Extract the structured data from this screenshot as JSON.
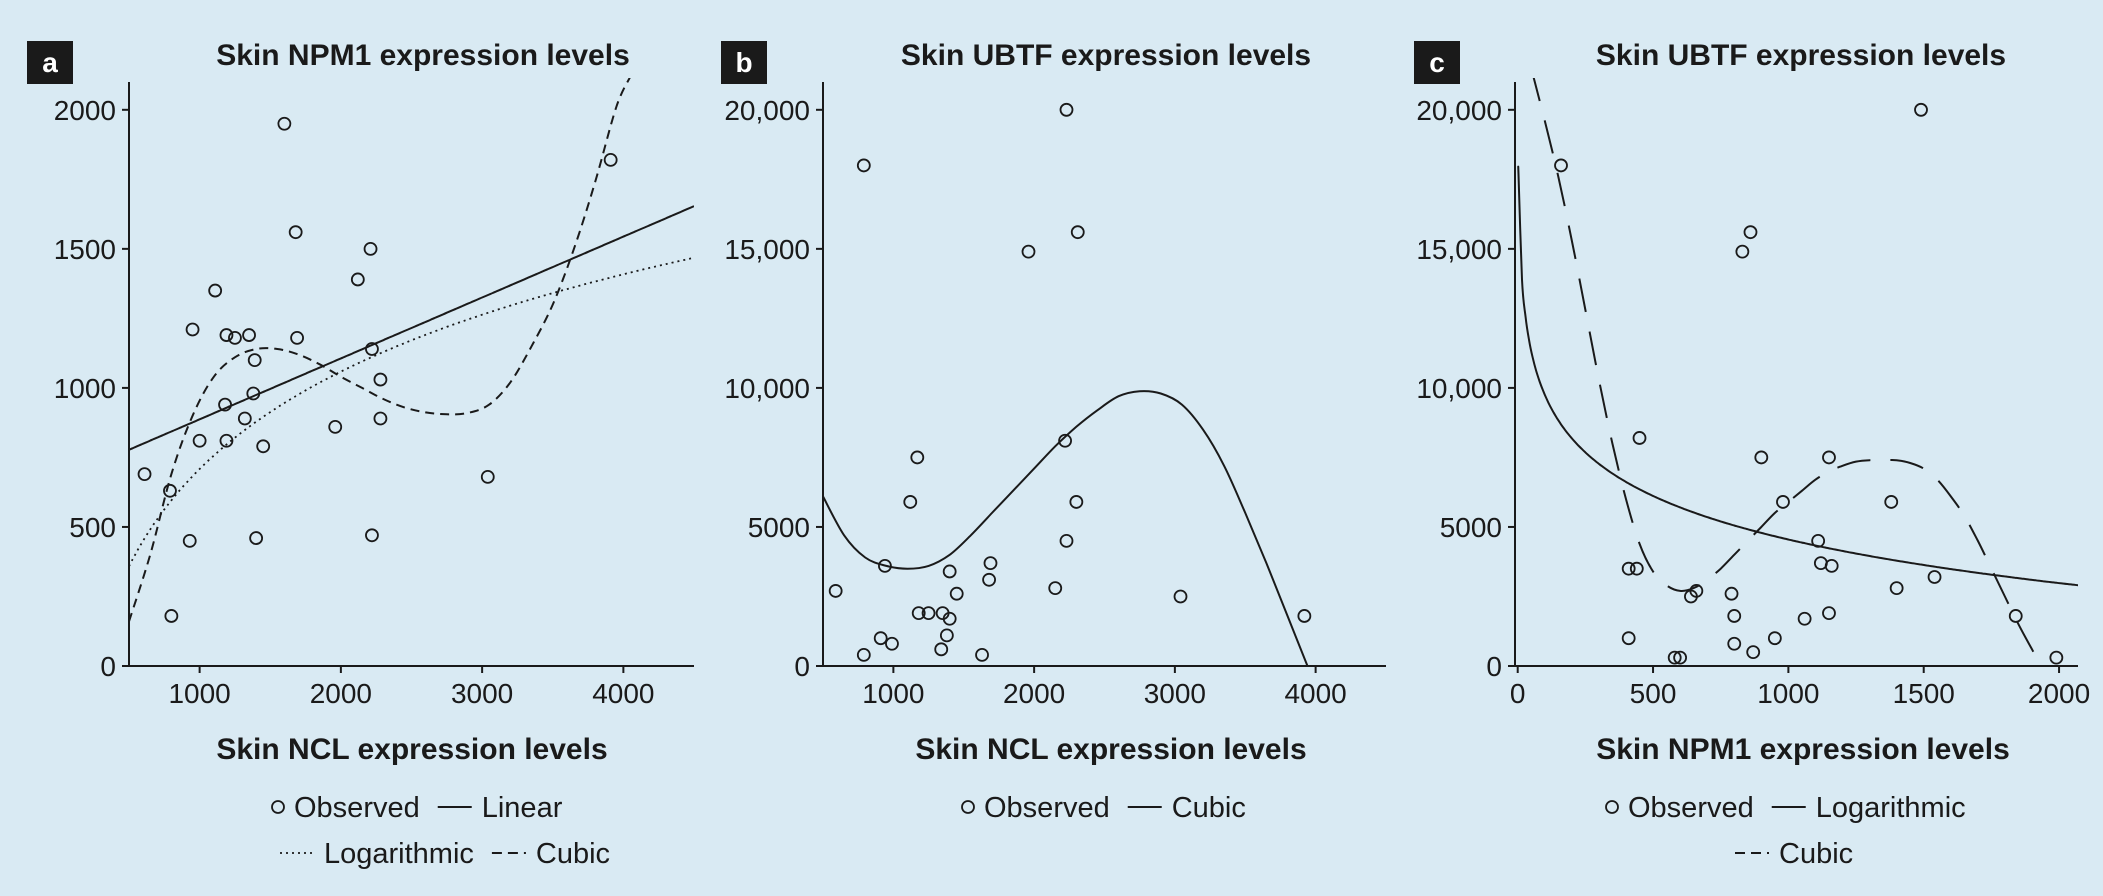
{
  "colors": {
    "background": "#d9eaf3",
    "ink": "#1a1a1a",
    "label_box": "#1a1a1a",
    "label_text": "#ffffff"
  },
  "chart_data": [
    {
      "panel": "a",
      "type": "scatter",
      "title": "Skin NPM1 expression levels",
      "xlabel": "Skin NCL expression levels",
      "ylabel": "",
      "xlim": [
        500,
        4500
      ],
      "ylim": [
        0,
        2100
      ],
      "xticks": [
        1000,
        2000,
        3000,
        4000
      ],
      "xtick_labels": [
        "1000",
        "2000",
        "3000",
        "4000"
      ],
      "yticks": [
        0,
        500,
        1000,
        1500,
        2000
      ],
      "ytick_labels": [
        "0",
        "500",
        "1000",
        "1500",
        "2000"
      ],
      "grid": false,
      "legend_placement": "bottom",
      "legend_rows": [
        [
          {
            "symbol": "circle",
            "label": "Observed"
          },
          {
            "symbol": "solid",
            "label": "Linear"
          }
        ],
        [
          {
            "symbol": "dotted",
            "label": "Logarithmic"
          },
          {
            "symbol": "dashed",
            "label": "Cubic"
          }
        ]
      ],
      "points": [
        {
          "x": 610,
          "y": 690
        },
        {
          "x": 790,
          "y": 630
        },
        {
          "x": 800,
          "y": 180
        },
        {
          "x": 930,
          "y": 450
        },
        {
          "x": 950,
          "y": 1210
        },
        {
          "x": 1000,
          "y": 810
        },
        {
          "x": 1110,
          "y": 1350
        },
        {
          "x": 1180,
          "y": 940
        },
        {
          "x": 1190,
          "y": 1190
        },
        {
          "x": 1190,
          "y": 810
        },
        {
          "x": 1250,
          "y": 1180
        },
        {
          "x": 1320,
          "y": 890
        },
        {
          "x": 1350,
          "y": 1190
        },
        {
          "x": 1380,
          "y": 980
        },
        {
          "x": 1390,
          "y": 1100
        },
        {
          "x": 1400,
          "y": 460
        },
        {
          "x": 1450,
          "y": 790
        },
        {
          "x": 1600,
          "y": 1950
        },
        {
          "x": 1680,
          "y": 1560
        },
        {
          "x": 1690,
          "y": 1180
        },
        {
          "x": 1960,
          "y": 860
        },
        {
          "x": 2120,
          "y": 1390
        },
        {
          "x": 2210,
          "y": 1500
        },
        {
          "x": 2220,
          "y": 470
        },
        {
          "x": 2220,
          "y": 1140
        },
        {
          "x": 2280,
          "y": 1030
        },
        {
          "x": 2280,
          "y": 890
        },
        {
          "x": 3040,
          "y": 680
        },
        {
          "x": 3910,
          "y": 1820
        }
      ],
      "fits": [
        {
          "name": "Linear",
          "style": "solid",
          "model": "linear",
          "coef": [
            668,
            0.219
          ]
        },
        {
          "name": "Logarithmic",
          "style": "dotted",
          "model": "log",
          "coef": [
            -2780,
            505
          ]
        },
        {
          "name": "Cubic",
          "style": "dashed",
          "model": "spline",
          "points": [
            [
              500,
              160
            ],
            [
              650,
              400
            ],
            [
              800,
              690
            ],
            [
              950,
              900
            ],
            [
              1100,
              1040
            ],
            [
              1250,
              1110
            ],
            [
              1400,
              1140
            ],
            [
              1550,
              1140
            ],
            [
              1700,
              1120
            ],
            [
              1850,
              1085
            ],
            [
              2000,
              1040
            ],
            [
              2150,
              1000
            ],
            [
              2300,
              960
            ],
            [
              2450,
              930
            ],
            [
              2600,
              912
            ],
            [
              2750,
              905
            ],
            [
              2900,
              910
            ],
            [
              3050,
              940
            ],
            [
              3200,
              1020
            ],
            [
              3350,
              1150
            ],
            [
              3500,
              1300
            ],
            [
              3650,
              1500
            ],
            [
              3800,
              1740
            ],
            [
              3950,
              2010
            ],
            [
              4050,
              2120
            ]
          ]
        }
      ]
    },
    {
      "panel": "b",
      "type": "scatter",
      "title": "Skin UBTF expression levels",
      "xlabel": "Skin NCL expression levels",
      "ylabel": "",
      "xlim": [
        500,
        4500
      ],
      "ylim": [
        0,
        21000
      ],
      "xticks": [
        1000,
        2000,
        3000,
        4000
      ],
      "xtick_labels": [
        "1000",
        "2000",
        "3000",
        "4000"
      ],
      "yticks": [
        0,
        5000,
        10000,
        15000,
        20000
      ],
      "ytick_labels": [
        "0",
        "5000",
        "10,000",
        "15,000",
        "20,000"
      ],
      "grid": false,
      "legend_placement": "bottom",
      "legend_rows": [
        [
          {
            "symbol": "circle",
            "label": "Observed"
          },
          {
            "symbol": "solid",
            "label": "Cubic"
          }
        ]
      ],
      "points": [
        {
          "x": 590,
          "y": 2700
        },
        {
          "x": 790,
          "y": 18000
        },
        {
          "x": 790,
          "y": 400
        },
        {
          "x": 910,
          "y": 1000
        },
        {
          "x": 940,
          "y": 3600
        },
        {
          "x": 990,
          "y": 800
        },
        {
          "x": 1120,
          "y": 5900
        },
        {
          "x": 1170,
          "y": 7500
        },
        {
          "x": 1180,
          "y": 1900
        },
        {
          "x": 1250,
          "y": 1900
        },
        {
          "x": 1340,
          "y": 600
        },
        {
          "x": 1350,
          "y": 1900
        },
        {
          "x": 1380,
          "y": 1100
        },
        {
          "x": 1400,
          "y": 3400
        },
        {
          "x": 1400,
          "y": 1700
        },
        {
          "x": 1450,
          "y": 2600
        },
        {
          "x": 1630,
          "y": 400
        },
        {
          "x": 1680,
          "y": 3100
        },
        {
          "x": 1690,
          "y": 3700
        },
        {
          "x": 1960,
          "y": 14900
        },
        {
          "x": 2150,
          "y": 2800
        },
        {
          "x": 2220,
          "y": 8100
        },
        {
          "x": 2230,
          "y": 20000
        },
        {
          "x": 2230,
          "y": 4500
        },
        {
          "x": 2300,
          "y": 5900
        },
        {
          "x": 2310,
          "y": 15600
        },
        {
          "x": 3040,
          "y": 2500
        },
        {
          "x": 3920,
          "y": 1800
        }
      ],
      "fits": [
        {
          "name": "Cubic",
          "style": "solid",
          "model": "spline",
          "points": [
            [
              500,
              6100
            ],
            [
              650,
              4700
            ],
            [
              800,
              3900
            ],
            [
              950,
              3600
            ],
            [
              1100,
              3500
            ],
            [
              1250,
              3600
            ],
            [
              1400,
              4000
            ],
            [
              1550,
              4700
            ],
            [
              1700,
              5500
            ],
            [
              1850,
              6300
            ],
            [
              2000,
              7100
            ],
            [
              2150,
              7900
            ],
            [
              2300,
              8600
            ],
            [
              2450,
              9200
            ],
            [
              2600,
              9700
            ],
            [
              2750,
              9880
            ],
            [
              2900,
              9800
            ],
            [
              3050,
              9400
            ],
            [
              3200,
              8500
            ],
            [
              3350,
              7200
            ],
            [
              3500,
              5500
            ],
            [
              3650,
              3700
            ],
            [
              3800,
              1800
            ],
            [
              3950,
              -100
            ]
          ]
        }
      ]
    },
    {
      "panel": "c",
      "type": "scatter",
      "title": "Skin UBTF expression levels",
      "xlabel": "Skin NPM1 expression levels",
      "ylabel": "",
      "xlim": [
        -10,
        2070
      ],
      "ylim": [
        0,
        21000
      ],
      "xticks": [
        0,
        500,
        1000,
        1500,
        2000
      ],
      "xtick_labels": [
        "0",
        "500",
        "1000",
        "1500",
        "2000"
      ],
      "yticks": [
        0,
        5000,
        10000,
        15000,
        20000
      ],
      "ytick_labels": [
        "0",
        "5000",
        "10,000",
        "15,000",
        "20,000"
      ],
      "grid": false,
      "legend_placement": "bottom",
      "legend_rows": [
        [
          {
            "symbol": "circle",
            "label": "Observed"
          },
          {
            "symbol": "solid",
            "label": "Logarithmic"
          }
        ],
        [
          {
            "symbol": "longdash",
            "label": "Cubic"
          }
        ]
      ],
      "points": [
        {
          "x": 160,
          "y": 18000
        },
        {
          "x": 410,
          "y": 1000
        },
        {
          "x": 410,
          "y": 3500
        },
        {
          "x": 440,
          "y": 3500
        },
        {
          "x": 450,
          "y": 8200
        },
        {
          "x": 580,
          "y": 300
        },
        {
          "x": 600,
          "y": 300
        },
        {
          "x": 640,
          "y": 2500
        },
        {
          "x": 660,
          "y": 2700
        },
        {
          "x": 790,
          "y": 2600
        },
        {
          "x": 800,
          "y": 800
        },
        {
          "x": 800,
          "y": 1800
        },
        {
          "x": 830,
          "y": 14900
        },
        {
          "x": 860,
          "y": 15600
        },
        {
          "x": 870,
          "y": 500
        },
        {
          "x": 900,
          "y": 7500
        },
        {
          "x": 950,
          "y": 1000
        },
        {
          "x": 980,
          "y": 5900
        },
        {
          "x": 1060,
          "y": 1700
        },
        {
          "x": 1110,
          "y": 4500
        },
        {
          "x": 1120,
          "y": 3700
        },
        {
          "x": 1150,
          "y": 7500
        },
        {
          "x": 1160,
          "y": 3600
        },
        {
          "x": 1150,
          "y": 1900
        },
        {
          "x": 1380,
          "y": 5900
        },
        {
          "x": 1400,
          "y": 2800
        },
        {
          "x": 1490,
          "y": 20000
        },
        {
          "x": 1540,
          "y": 3200
        },
        {
          "x": 1840,
          "y": 1800
        },
        {
          "x": 1990,
          "y": 300
        }
      ],
      "fits": [
        {
          "name": "Logarithmic",
          "style": "solid",
          "model": "log",
          "coef": [
            20160,
            -2260
          ]
        },
        {
          "name": "Cubic",
          "style": "longdash",
          "model": "spline",
          "points": [
            [
              50,
              21500
            ],
            [
              100,
              19600
            ],
            [
              150,
              17600
            ],
            [
              200,
              15300
            ],
            [
              250,
              12800
            ],
            [
              300,
              10300
            ],
            [
              350,
              8000
            ],
            [
              400,
              6000
            ],
            [
              450,
              4400
            ],
            [
              500,
              3400
            ],
            [
              550,
              2900
            ],
            [
              600,
              2700
            ],
            [
              650,
              2800
            ],
            [
              700,
              3100
            ],
            [
              750,
              3500
            ],
            [
              800,
              4000
            ],
            [
              850,
              4500
            ],
            [
              900,
              5000
            ],
            [
              950,
              5500
            ],
            [
              1000,
              5900
            ],
            [
              1050,
              6300
            ],
            [
              1100,
              6700
            ],
            [
              1150,
              7000
            ],
            [
              1200,
              7200
            ],
            [
              1250,
              7350
            ],
            [
              1300,
              7400
            ],
            [
              1350,
              7400
            ],
            [
              1400,
              7400
            ],
            [
              1450,
              7300
            ],
            [
              1500,
              7100
            ],
            [
              1550,
              6700
            ],
            [
              1600,
              6100
            ],
            [
              1650,
              5400
            ],
            [
              1700,
              4500
            ],
            [
              1750,
              3500
            ],
            [
              1800,
              2500
            ],
            [
              1850,
              1500
            ],
            [
              1900,
              600
            ],
            [
              1940,
              -100
            ]
          ]
        }
      ]
    }
  ]
}
